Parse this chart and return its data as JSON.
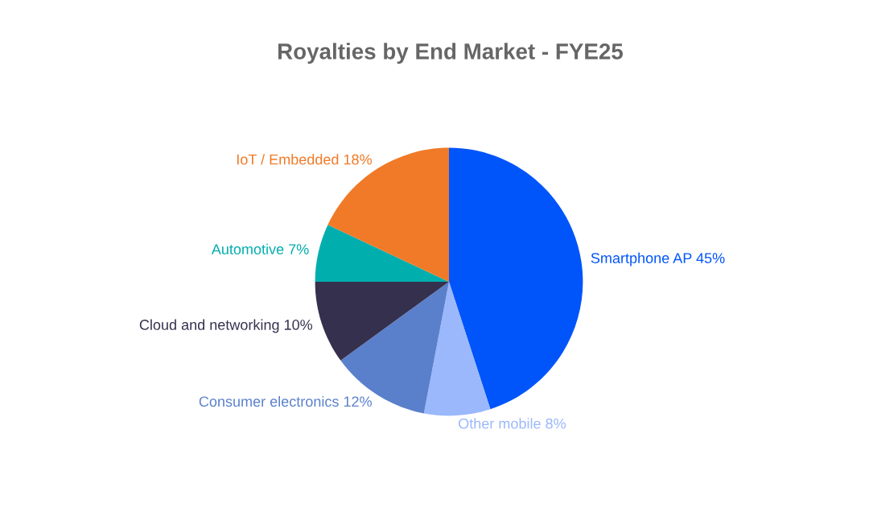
{
  "chart_data": {
    "type": "pie",
    "title": "Royalties by End Market - FYE25",
    "categories": [
      "Smartphone AP",
      "Other mobile",
      "Consumer electronics",
      "Cloud and networking",
      "Automotive",
      "IoT / Embedded"
    ],
    "values": [
      45,
      8,
      12,
      10,
      7,
      18
    ],
    "value_labels": [
      "45%",
      "8%",
      "12%",
      "10%",
      "7%",
      "18%"
    ],
    "colors": [
      "#0055fa",
      "#9ab8fb",
      "#5a80cc",
      "#35304e",
      "#00aeae",
      "#f07a27"
    ],
    "legend": false
  }
}
